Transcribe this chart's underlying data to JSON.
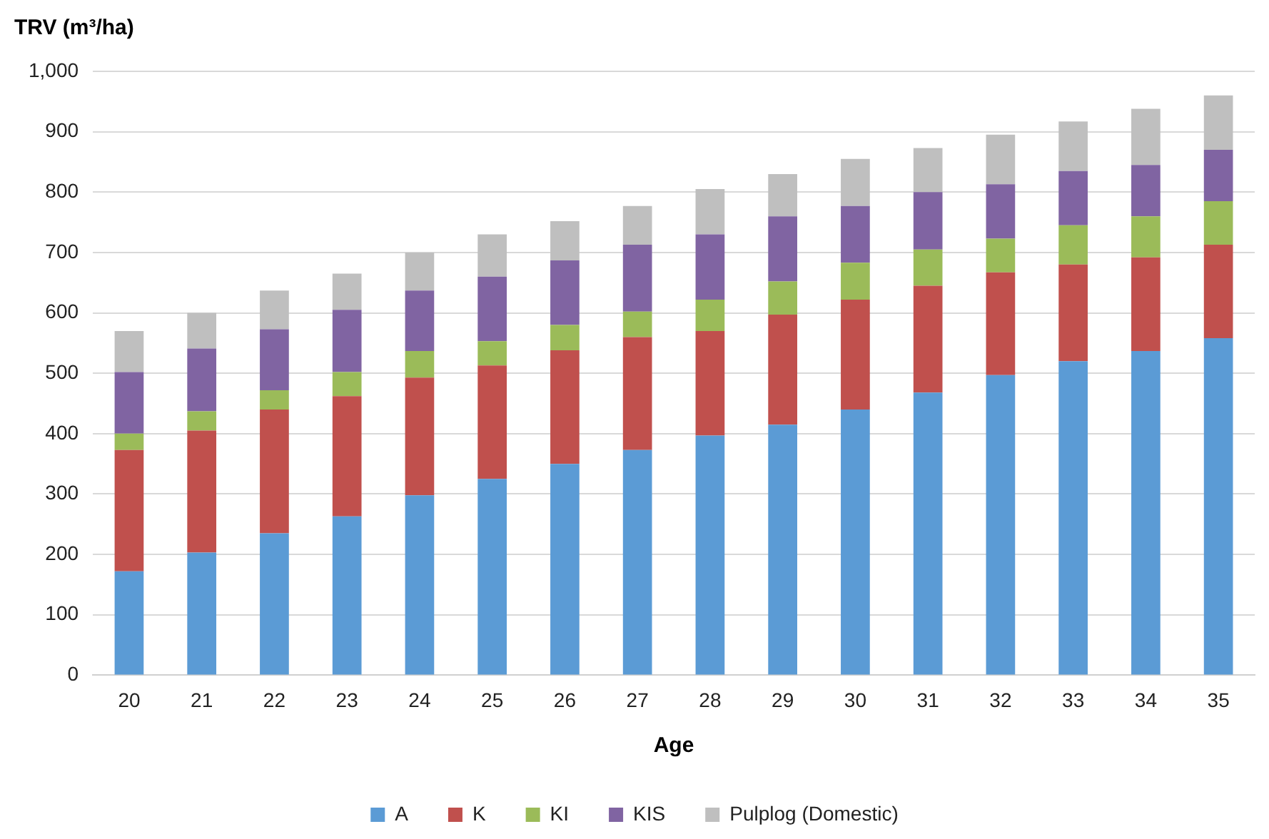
{
  "chart_data": {
    "type": "bar",
    "stacked": true,
    "ylabel": "TRV (m³/ha)",
    "xlabel": "Age",
    "categories": [
      "20",
      "21",
      "22",
      "23",
      "24",
      "25",
      "26",
      "27",
      "28",
      "29",
      "30",
      "31",
      "32",
      "33",
      "34",
      "35"
    ],
    "series": [
      {
        "name": "A",
        "color": "#5b9bd5",
        "values": [
          172,
          203,
          235,
          263,
          298,
          325,
          350,
          373,
          397,
          415,
          440,
          468,
          497,
          520,
          537,
          558
        ]
      },
      {
        "name": "K",
        "color": "#c0504d",
        "values": [
          201,
          202,
          205,
          199,
          195,
          188,
          188,
          187,
          173,
          182,
          182,
          177,
          170,
          160,
          155,
          155
        ]
      },
      {
        "name": "KI",
        "color": "#9bbb59",
        "values": [
          27,
          32,
          32,
          40,
          44,
          40,
          42,
          42,
          52,
          55,
          61,
          60,
          56,
          65,
          68,
          72
        ]
      },
      {
        "name": "KIS",
        "color": "#8064a2",
        "values": [
          102,
          104,
          101,
          103,
          100,
          107,
          107,
          111,
          108,
          108,
          94,
          95,
          90,
          90,
          85,
          85
        ]
      },
      {
        "name": "Pulplog (Domestic)",
        "color": "#bfbfbf",
        "values": [
          68,
          59,
          64,
          60,
          63,
          70,
          65,
          64,
          75,
          70,
          78,
          73,
          82,
          82,
          93,
          90
        ]
      }
    ],
    "ylim": [
      0,
      1000
    ],
    "yticks": [
      0,
      100,
      200,
      300,
      400,
      500,
      600,
      700,
      800,
      900,
      {
        "value": 1000,
        "label": "1,000"
      }
    ],
    "grid": "y",
    "legend": "bottom"
  }
}
